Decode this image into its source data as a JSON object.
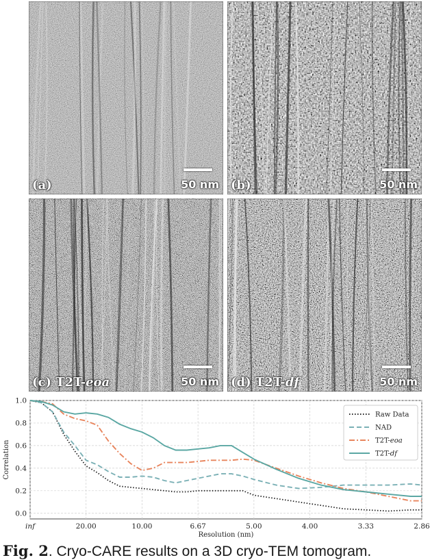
{
  "panels": [
    {
      "id": "a",
      "label": "(a)",
      "method": "",
      "scale": "50 nm"
    },
    {
      "id": "b",
      "label": "(b)",
      "method": "",
      "scale": "50 nm"
    },
    {
      "id": "c",
      "label": "(c) ",
      "method": "T2T-",
      "method_em": "eoa",
      "scale": "50 nm"
    },
    {
      "id": "d",
      "label": "(d) ",
      "method": "T2T-",
      "method_em": "df",
      "scale": "50 nm"
    }
  ],
  "chart_data": {
    "type": "line",
    "xlabel": "Resolution (nm)",
    "ylabel": "Correlation",
    "x_ticks": [
      "inf",
      "20.00",
      "10.00",
      "6.67",
      "5.00",
      "4.00",
      "3.33",
      "2.86"
    ],
    "y_ticks": [
      "0.0",
      "0.2",
      "0.4",
      "0.6",
      "0.8",
      "1.0"
    ],
    "ylim": [
      -0.05,
      1.0
    ],
    "x_frequency_domain": [
      0,
      0.35
    ],
    "legend_position": "top-right",
    "series": [
      {
        "name": "Raw Data",
        "style": "dotted",
        "color": "#222222",
        "x": [
          0,
          0.01,
          0.02,
          0.03,
          0.04,
          0.05,
          0.06,
          0.07,
          0.08,
          0.09,
          0.1,
          0.11,
          0.12,
          0.13,
          0.14,
          0.15,
          0.16,
          0.17,
          0.18,
          0.19,
          0.2,
          0.22,
          0.24,
          0.26,
          0.28,
          0.3,
          0.32,
          0.34,
          0.35
        ],
        "y": [
          1.0,
          0.98,
          0.9,
          0.7,
          0.55,
          0.42,
          0.36,
          0.29,
          0.24,
          0.23,
          0.22,
          0.21,
          0.2,
          0.19,
          0.19,
          0.2,
          0.2,
          0.2,
          0.2,
          0.2,
          0.16,
          0.13,
          0.1,
          0.07,
          0.04,
          0.03,
          0.02,
          0.03,
          0.03
        ]
      },
      {
        "name": "NAD",
        "style": "dashed",
        "color": "#7ab0b5",
        "x": [
          0,
          0.01,
          0.02,
          0.03,
          0.04,
          0.05,
          0.06,
          0.07,
          0.08,
          0.09,
          0.1,
          0.11,
          0.12,
          0.13,
          0.14,
          0.15,
          0.16,
          0.17,
          0.18,
          0.19,
          0.2,
          0.22,
          0.24,
          0.26,
          0.28,
          0.3,
          0.32,
          0.34,
          0.35
        ],
        "y": [
          1.0,
          0.98,
          0.9,
          0.72,
          0.6,
          0.47,
          0.43,
          0.37,
          0.32,
          0.32,
          0.33,
          0.32,
          0.29,
          0.27,
          0.29,
          0.31,
          0.33,
          0.35,
          0.35,
          0.33,
          0.3,
          0.25,
          0.22,
          0.23,
          0.25,
          0.25,
          0.25,
          0.26,
          0.25
        ]
      },
      {
        "name": "T2T-eoa",
        "style": "dashdot",
        "color": "#e8845c",
        "x": [
          0,
          0.01,
          0.02,
          0.03,
          0.04,
          0.05,
          0.06,
          0.07,
          0.08,
          0.09,
          0.1,
          0.11,
          0.12,
          0.13,
          0.14,
          0.15,
          0.16,
          0.17,
          0.18,
          0.19,
          0.2,
          0.22,
          0.24,
          0.26,
          0.28,
          0.3,
          0.32,
          0.34,
          0.35
        ],
        "y": [
          1.0,
          0.99,
          0.97,
          0.88,
          0.84,
          0.82,
          0.78,
          0.64,
          0.53,
          0.44,
          0.38,
          0.4,
          0.45,
          0.45,
          0.45,
          0.46,
          0.47,
          0.47,
          0.47,
          0.48,
          0.47,
          0.4,
          0.33,
          0.27,
          0.22,
          0.19,
          0.15,
          0.11,
          0.11
        ]
      },
      {
        "name": "T2T-df",
        "style": "solid",
        "color": "#5aa7a3",
        "x": [
          0,
          0.01,
          0.02,
          0.03,
          0.04,
          0.05,
          0.06,
          0.07,
          0.08,
          0.09,
          0.1,
          0.11,
          0.12,
          0.13,
          0.14,
          0.15,
          0.16,
          0.17,
          0.18,
          0.19,
          0.2,
          0.22,
          0.24,
          0.26,
          0.28,
          0.3,
          0.32,
          0.34,
          0.35
        ],
        "y": [
          1.0,
          0.99,
          0.96,
          0.9,
          0.88,
          0.89,
          0.88,
          0.85,
          0.79,
          0.75,
          0.72,
          0.67,
          0.6,
          0.56,
          0.56,
          0.57,
          0.58,
          0.6,
          0.6,
          0.54,
          0.48,
          0.39,
          0.31,
          0.25,
          0.21,
          0.19,
          0.17,
          0.15,
          0.15
        ]
      }
    ]
  },
  "caption": {
    "bold": "Fig. 2",
    "text": ".  Cryo-CARE results on a 3D cryo-TEM tomogram."
  },
  "colors": {
    "raw": "#222222",
    "nad": "#7ab0b5",
    "eoa": "#e8845c",
    "df": "#5aa7a3"
  }
}
